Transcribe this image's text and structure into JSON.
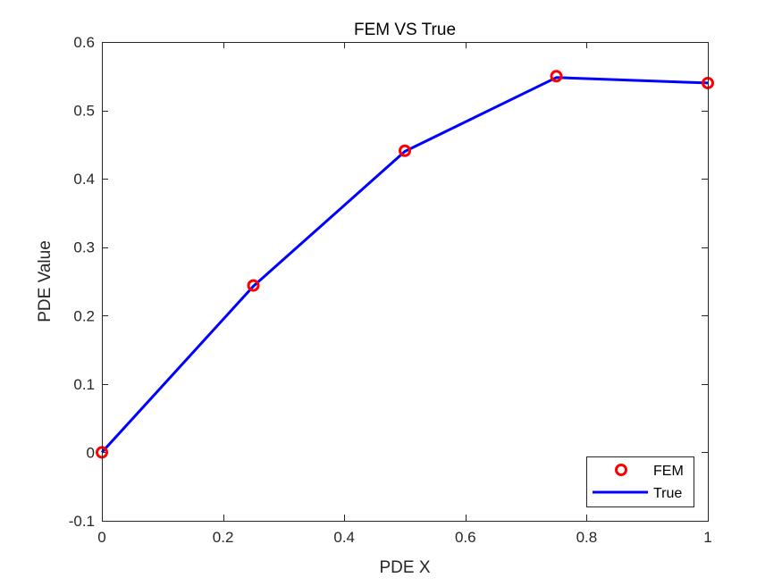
{
  "chart_data": {
    "type": "line",
    "title": "FEM VS True",
    "xlabel": "PDE X",
    "ylabel": "PDE Value",
    "xlim": [
      0,
      1
    ],
    "ylim": [
      -0.1,
      0.6
    ],
    "x_ticks": [
      0,
      0.2,
      0.4,
      0.6,
      0.8,
      1
    ],
    "x_tick_labels": [
      "0",
      "0.2",
      "0.4",
      "0.6",
      "0.8",
      "1"
    ],
    "y_ticks": [
      -0.1,
      0,
      0.1,
      0.2,
      0.3,
      0.4,
      0.5,
      0.6
    ],
    "y_tick_labels": [
      "-0.1",
      "0",
      "0.1",
      "0.2",
      "0.3",
      "0.4",
      "0.5",
      "0.6"
    ],
    "grid": false,
    "legend_position": "bottom-right",
    "series": [
      {
        "name": "FEM",
        "style": "markers",
        "marker": "circle",
        "color": "#ff0000",
        "x": [
          0,
          0.25,
          0.5,
          0.75,
          1
        ],
        "y": [
          0,
          0.244,
          0.441,
          0.55,
          0.54
        ]
      },
      {
        "name": "True",
        "style": "line",
        "color": "#0000ff",
        "x": [
          0,
          0.25,
          0.5,
          0.75,
          1
        ],
        "y": [
          0,
          0.243,
          0.44,
          0.548,
          0.54
        ]
      }
    ]
  }
}
